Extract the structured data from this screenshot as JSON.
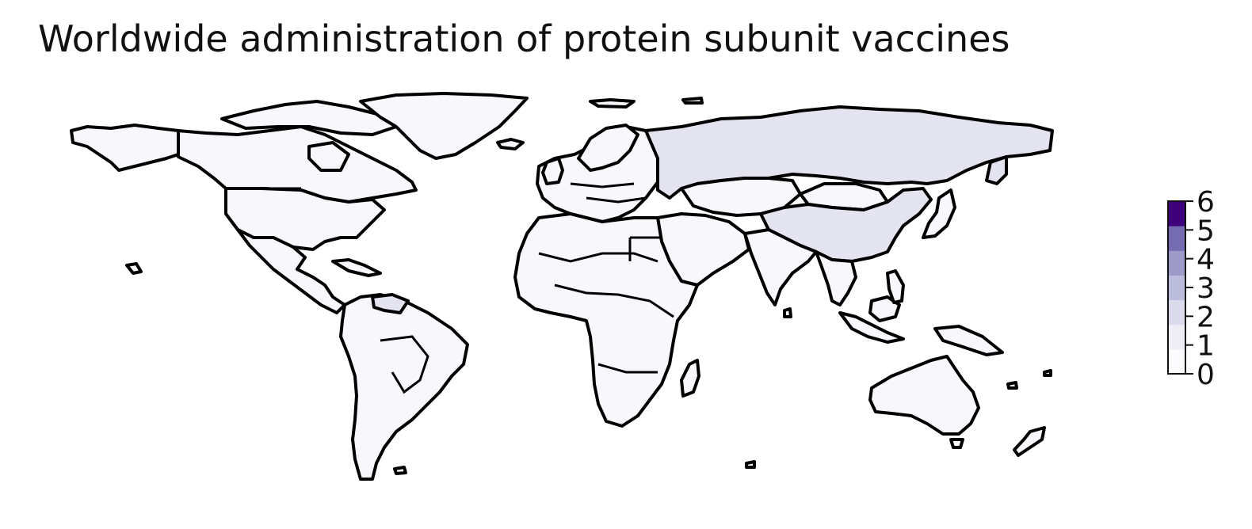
{
  "title": "Worldwide administration of protein subunit vaccines",
  "colorbar": {
    "min": 0,
    "max": 6,
    "ticks": [
      "0",
      "1",
      "2",
      "3",
      "4",
      "5",
      "6"
    ],
    "colors": [
      "#fcfbfd",
      "#efedf5",
      "#dadaeb",
      "#bcbddc",
      "#9e9ac8",
      "#756bb1",
      "#3f007d"
    ]
  },
  "map": {
    "projection": "equirectangular",
    "border_color": "#000000",
    "regions": [
      {
        "name": "Russia",
        "value": 1
      },
      {
        "name": "China",
        "value": 1
      },
      {
        "name": "Venezuela",
        "value": 1
      },
      {
        "name": "Canada",
        "value": 0
      },
      {
        "name": "United States",
        "value": 0
      },
      {
        "name": "Greenland",
        "value": 0
      },
      {
        "name": "Brazil",
        "value": 0
      },
      {
        "name": "Australia",
        "value": 0
      },
      {
        "name": "India",
        "value": 0
      },
      {
        "name": "Africa",
        "value": 0
      },
      {
        "name": "Europe",
        "value": 0
      }
    ]
  }
}
